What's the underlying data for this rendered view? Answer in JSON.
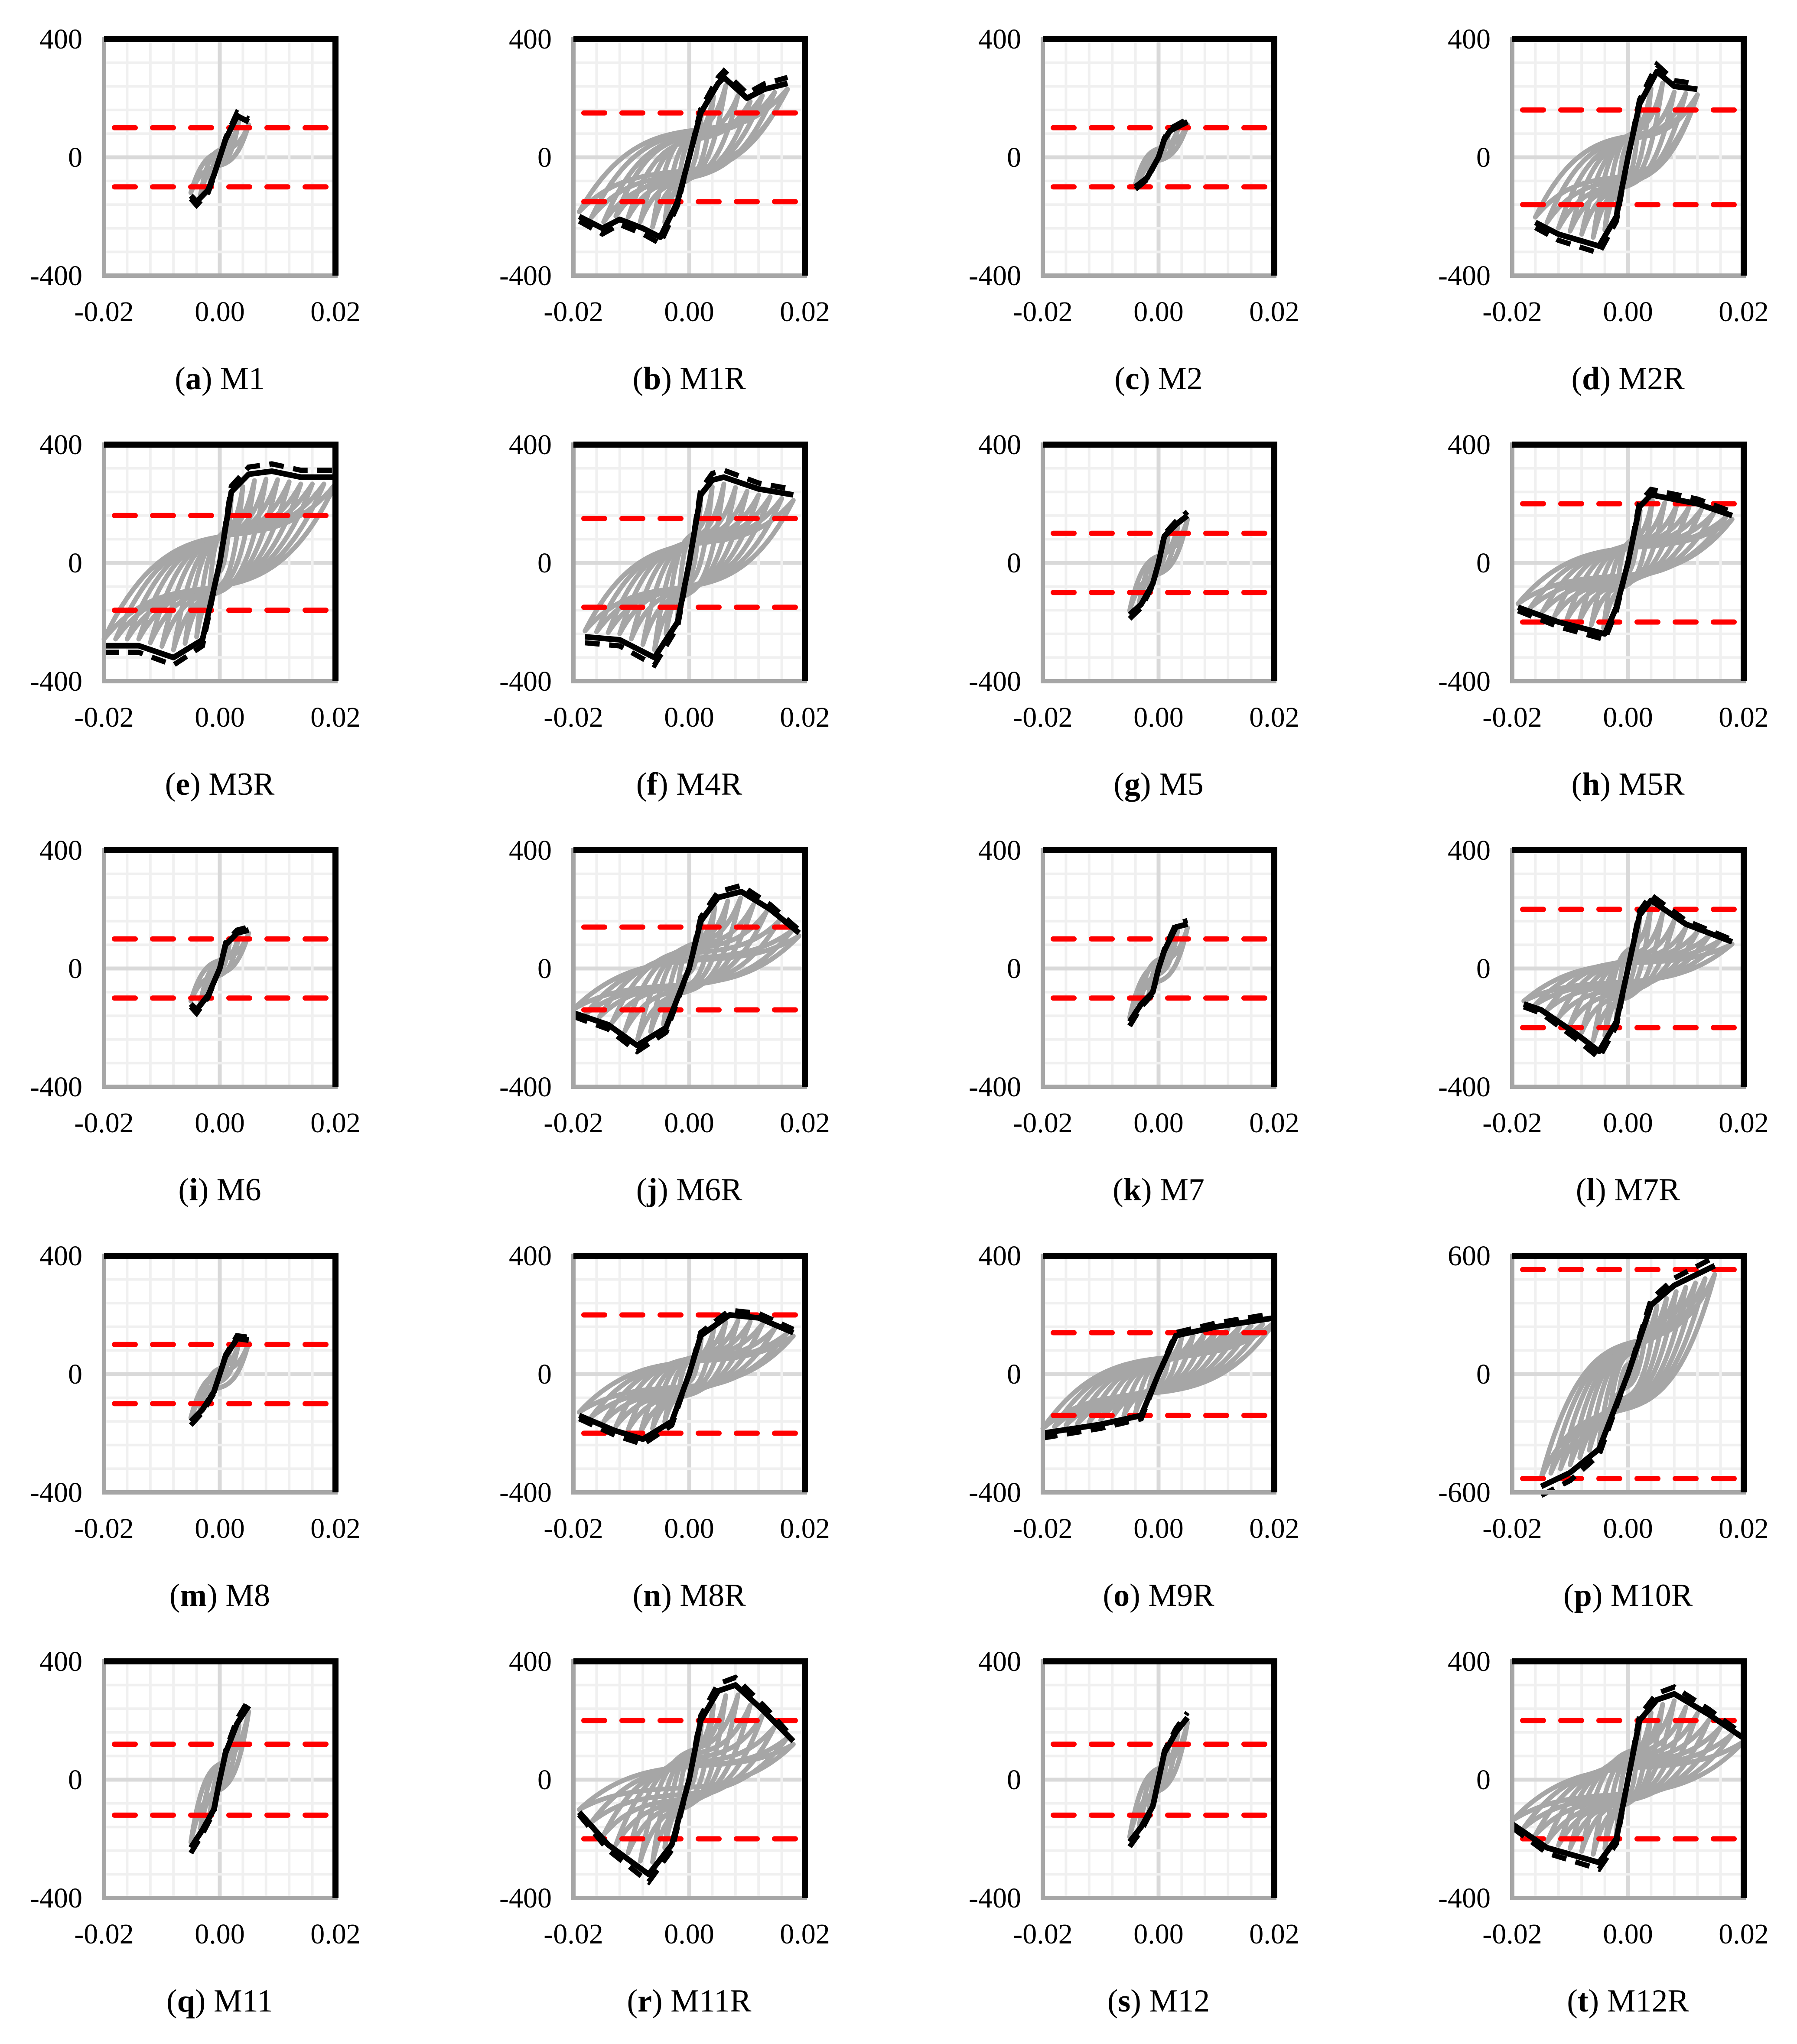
{
  "colors": {
    "loops": "#a6a6a6",
    "envelope": "#000000",
    "yield": "#ff0000",
    "grid": "#f0f0f0",
    "axis": "#d9d9d9"
  },
  "chart_data": [
    {
      "type": "line",
      "letter": "a",
      "name": "M1",
      "ylim": [
        -400,
        400
      ],
      "xlim": [
        -0.02,
        0.02
      ],
      "yticks": [
        "400",
        "0",
        "-400"
      ],
      "xticks": [
        "-0.02",
        "0.00",
        "0.02"
      ],
      "yield": 100,
      "cycles": 3,
      "envelope": [
        [
          -0.005,
          -130
        ],
        [
          -0.004,
          -150
        ],
        [
          -0.002,
          -110
        ],
        [
          -0.001,
          -60
        ],
        [
          0,
          0
        ],
        [
          0.001,
          60
        ],
        [
          0.002,
          100
        ],
        [
          0.003,
          140
        ],
        [
          0.005,
          120
        ]
      ]
    },
    {
      "type": "line",
      "letter": "b",
      "name": "M1R",
      "ylim": [
        -400,
        400
      ],
      "xlim": [
        -0.02,
        0.02
      ],
      "yticks": [
        "400",
        "0",
        "-400"
      ],
      "xticks": [
        "-0.02",
        "0.00",
        "0.02"
      ],
      "yield": 150,
      "cycles": 9,
      "envelope": [
        [
          -0.019,
          -200
        ],
        [
          -0.015,
          -240
        ],
        [
          -0.012,
          -210
        ],
        [
          -0.008,
          -240
        ],
        [
          -0.005,
          -270
        ],
        [
          -0.002,
          -150
        ],
        [
          0,
          0
        ],
        [
          0.002,
          150
        ],
        [
          0.005,
          250
        ],
        [
          0.006,
          270
        ],
        [
          0.01,
          200
        ],
        [
          0.013,
          230
        ],
        [
          0.017,
          250
        ]
      ]
    },
    {
      "type": "line",
      "letter": "c",
      "name": "M2",
      "ylim": [
        -400,
        400
      ],
      "xlim": [
        -0.02,
        0.02
      ],
      "yticks": [
        "400",
        "0",
        "-400"
      ],
      "xticks": [
        "-0.02",
        "0.00",
        "0.02"
      ],
      "yield": 100,
      "cycles": 3,
      "envelope": [
        [
          -0.004,
          -100
        ],
        [
          -0.002,
          -70
        ],
        [
          0,
          0
        ],
        [
          0.001,
          60
        ],
        [
          0.002,
          90
        ],
        [
          0.005,
          120
        ]
      ]
    },
    {
      "type": "line",
      "letter": "d",
      "name": "M2R",
      "ylim": [
        -400,
        400
      ],
      "xlim": [
        -0.02,
        0.02
      ],
      "yticks": [
        "400",
        "0",
        "-400"
      ],
      "xticks": [
        "-0.02",
        "0.00",
        "0.02"
      ],
      "yield": 160,
      "cycles": 8,
      "envelope": [
        [
          -0.016,
          -220
        ],
        [
          -0.012,
          -260
        ],
        [
          -0.005,
          -300
        ],
        [
          -0.002,
          -200
        ],
        [
          0,
          0
        ],
        [
          0.002,
          180
        ],
        [
          0.005,
          290
        ],
        [
          0.008,
          240
        ],
        [
          0.012,
          230
        ]
      ]
    },
    {
      "type": "line",
      "letter": "e",
      "name": "M3R",
      "ylim": [
        -400,
        400
      ],
      "xlim": [
        -0.02,
        0.02
      ],
      "yticks": [
        "400",
        "0",
        "-400"
      ],
      "xticks": [
        "-0.02",
        "0.00",
        "0.02"
      ],
      "yield": 160,
      "cycles": 10,
      "envelope": [
        [
          -0.02,
          -280
        ],
        [
          -0.014,
          -280
        ],
        [
          -0.008,
          -320
        ],
        [
          -0.003,
          -260
        ],
        [
          0,
          0
        ],
        [
          0.002,
          240
        ],
        [
          0.005,
          300
        ],
        [
          0.009,
          310
        ],
        [
          0.014,
          290
        ],
        [
          0.02,
          290
        ]
      ]
    },
    {
      "type": "line",
      "letter": "f",
      "name": "M4R",
      "ylim": [
        -400,
        400
      ],
      "xlim": [
        -0.02,
        0.02
      ],
      "yticks": [
        "400",
        "0",
        "-400"
      ],
      "xticks": [
        "-0.02",
        "0.00",
        "0.02"
      ],
      "yield": 150,
      "cycles": 9,
      "envelope": [
        [
          -0.018,
          -250
        ],
        [
          -0.012,
          -260
        ],
        [
          -0.006,
          -320
        ],
        [
          -0.002,
          -200
        ],
        [
          0,
          0
        ],
        [
          0.002,
          230
        ],
        [
          0.004,
          280
        ],
        [
          0.006,
          290
        ],
        [
          0.012,
          250
        ],
        [
          0.018,
          230
        ]
      ]
    },
    {
      "type": "line",
      "letter": "g",
      "name": "M5",
      "ylim": [
        -400,
        400
      ],
      "xlim": [
        -0.02,
        0.02
      ],
      "yticks": [
        "400",
        "0",
        "-400"
      ],
      "xticks": [
        "-0.02",
        "0.00",
        "0.02"
      ],
      "yield": 100,
      "cycles": 3,
      "envelope": [
        [
          -0.005,
          -175
        ],
        [
          -0.003,
          -140
        ],
        [
          -0.001,
          -70
        ],
        [
          0,
          0
        ],
        [
          0.001,
          90
        ],
        [
          0.003,
          130
        ],
        [
          0.005,
          160
        ]
      ]
    },
    {
      "type": "line",
      "letter": "h",
      "name": "M5R",
      "ylim": [
        -400,
        400
      ],
      "xlim": [
        -0.02,
        0.02
      ],
      "yticks": [
        "400",
        "0",
        "-400"
      ],
      "xticks": [
        "-0.02",
        "0.00",
        "0.02"
      ],
      "yield": 200,
      "cycles": 9,
      "envelope": [
        [
          -0.019,
          -150
        ],
        [
          -0.012,
          -200
        ],
        [
          -0.004,
          -240
        ],
        [
          -0.002,
          -150
        ],
        [
          0,
          0
        ],
        [
          0.002,
          190
        ],
        [
          0.004,
          230
        ],
        [
          0.012,
          200
        ],
        [
          0.018,
          160
        ]
      ]
    },
    {
      "type": "line",
      "letter": "i",
      "name": "M6",
      "ylim": [
        -400,
        400
      ],
      "xlim": [
        -0.02,
        0.02
      ],
      "yticks": [
        "400",
        "0",
        "-400"
      ],
      "xticks": [
        "-0.02",
        "0.00",
        "0.02"
      ],
      "yield": 100,
      "cycles": 3,
      "envelope": [
        [
          -0.005,
          -120
        ],
        [
          -0.004,
          -140
        ],
        [
          -0.002,
          -90
        ],
        [
          0,
          0
        ],
        [
          0.001,
          80
        ],
        [
          0.003,
          120
        ],
        [
          0.005,
          130
        ]
      ]
    },
    {
      "type": "line",
      "letter": "j",
      "name": "M6R",
      "ylim": [
        -400,
        400
      ],
      "xlim": [
        -0.02,
        0.02
      ],
      "yticks": [
        "400",
        "0",
        "-400"
      ],
      "xticks": [
        "-0.02",
        "0.00",
        "0.02"
      ],
      "yield": 140,
      "cycles": 9,
      "envelope": [
        [
          -0.02,
          -150
        ],
        [
          -0.014,
          -190
        ],
        [
          -0.009,
          -260
        ],
        [
          -0.004,
          -200
        ],
        [
          0,
          0
        ],
        [
          0.002,
          160
        ],
        [
          0.005,
          240
        ],
        [
          0.009,
          260
        ],
        [
          0.014,
          200
        ],
        [
          0.019,
          120
        ]
      ]
    },
    {
      "type": "line",
      "letter": "k",
      "name": "M7",
      "ylim": [
        -400,
        400
      ],
      "xlim": [
        -0.02,
        0.02
      ],
      "yticks": [
        "400",
        "0",
        "-400"
      ],
      "xticks": [
        "-0.02",
        "0.00",
        "0.02"
      ],
      "yield": 100,
      "cycles": 3,
      "envelope": [
        [
          -0.005,
          -180
        ],
        [
          -0.003,
          -120
        ],
        [
          -0.001,
          -80
        ],
        [
          0,
          0
        ],
        [
          0.001,
          60
        ],
        [
          0.003,
          140
        ],
        [
          0.005,
          150
        ]
      ]
    },
    {
      "type": "line",
      "letter": "l",
      "name": "M7R",
      "ylim": [
        -400,
        400
      ],
      "xlim": [
        -0.02,
        0.02
      ],
      "yticks": [
        "400",
        "0",
        "-400"
      ],
      "xticks": [
        "-0.02",
        "0.00",
        "0.02"
      ],
      "yield": 200,
      "cycles": 9,
      "envelope": [
        [
          -0.018,
          -120
        ],
        [
          -0.015,
          -140
        ],
        [
          -0.009,
          -220
        ],
        [
          -0.005,
          -280
        ],
        [
          -0.002,
          -180
        ],
        [
          0,
          0
        ],
        [
          0.002,
          180
        ],
        [
          0.004,
          230
        ],
        [
          0.01,
          150
        ],
        [
          0.018,
          90
        ]
      ]
    },
    {
      "type": "line",
      "letter": "m",
      "name": "M8",
      "ylim": [
        -400,
        400
      ],
      "xlim": [
        -0.02,
        0.02
      ],
      "yticks": [
        "400",
        "0",
        "-400"
      ],
      "xticks": [
        "-0.02",
        "0.00",
        "0.02"
      ],
      "yield": 100,
      "cycles": 3,
      "envelope": [
        [
          -0.005,
          -160
        ],
        [
          -0.003,
          -120
        ],
        [
          -0.001,
          -60
        ],
        [
          0,
          0
        ],
        [
          0.001,
          60
        ],
        [
          0.003,
          120
        ],
        [
          0.005,
          115
        ]
      ]
    },
    {
      "type": "line",
      "letter": "n",
      "name": "M8R",
      "ylim": [
        -400,
        400
      ],
      "xlim": [
        -0.02,
        0.02
      ],
      "yticks": [
        "400",
        "0",
        "-400"
      ],
      "xticks": [
        "-0.02",
        "0.00",
        "0.02"
      ],
      "yield": 200,
      "cycles": 9,
      "envelope": [
        [
          -0.019,
          -140
        ],
        [
          -0.013,
          -190
        ],
        [
          -0.008,
          -220
        ],
        [
          -0.003,
          -160
        ],
        [
          0,
          0
        ],
        [
          0.002,
          130
        ],
        [
          0.007,
          200
        ],
        [
          0.012,
          190
        ],
        [
          0.018,
          140
        ]
      ]
    },
    {
      "type": "line",
      "letter": "o",
      "name": "M9R",
      "ylim": [
        -400,
        400
      ],
      "xlim": [
        -0.02,
        0.02
      ],
      "yticks": [
        "400",
        "0",
        "-400"
      ],
      "xticks": [
        "-0.02",
        "0.00",
        "0.02"
      ],
      "yield": 140,
      "cycles": 10,
      "envelope": [
        [
          -0.02,
          -200
        ],
        [
          -0.01,
          -170
        ],
        [
          -0.003,
          -140
        ],
        [
          0,
          0
        ],
        [
          0.003,
          130
        ],
        [
          0.01,
          160
        ],
        [
          0.02,
          190
        ]
      ]
    },
    {
      "type": "line",
      "letter": "p",
      "name": "M10R",
      "ylim": [
        -600,
        600
      ],
      "xlim": [
        -0.02,
        0.02
      ],
      "yticks": [
        "600",
        "0",
        "-600"
      ],
      "xticks": [
        "-0.02",
        "0.00",
        "0.02"
      ],
      "yield": 530,
      "cycles": 9,
      "envelope": [
        [
          -0.015,
          -570
        ],
        [
          -0.01,
          -500
        ],
        [
          -0.005,
          -380
        ],
        [
          0,
          0
        ],
        [
          0.004,
          350
        ],
        [
          0.008,
          450
        ],
        [
          0.015,
          550
        ]
      ]
    },
    {
      "type": "line",
      "letter": "q",
      "name": "M11",
      "ylim": [
        -400,
        400
      ],
      "xlim": [
        -0.02,
        0.02
      ],
      "yticks": [
        "400",
        "0",
        "-400"
      ],
      "xticks": [
        "-0.02",
        "0.00",
        "0.02"
      ],
      "yield": 120,
      "cycles": 3,
      "envelope": [
        [
          -0.005,
          -230
        ],
        [
          -0.003,
          -170
        ],
        [
          -0.001,
          -100
        ],
        [
          0,
          0
        ],
        [
          0.001,
          90
        ],
        [
          0.003,
          190
        ],
        [
          0.005,
          250
        ]
      ]
    },
    {
      "type": "line",
      "letter": "r",
      "name": "M11R",
      "ylim": [
        -400,
        400
      ],
      "xlim": [
        -0.02,
        0.02
      ],
      "yticks": [
        "400",
        "0",
        "-400"
      ],
      "xticks": [
        "-0.02",
        "0.00",
        "0.02"
      ],
      "yield": 200,
      "cycles": 9,
      "envelope": [
        [
          -0.019,
          -110
        ],
        [
          -0.014,
          -220
        ],
        [
          -0.007,
          -320
        ],
        [
          -0.003,
          -220
        ],
        [
          0,
          0
        ],
        [
          0.002,
          200
        ],
        [
          0.005,
          300
        ],
        [
          0.008,
          320
        ],
        [
          0.013,
          230
        ],
        [
          0.018,
          130
        ]
      ]
    },
    {
      "type": "line",
      "letter": "s",
      "name": "M12",
      "ylim": [
        -400,
        400
      ],
      "xlim": [
        -0.02,
        0.02
      ],
      "yticks": [
        "400",
        "0",
        "-400"
      ],
      "xticks": [
        "-0.02",
        "0.00",
        "0.02"
      ],
      "yield": 120,
      "cycles": 3,
      "envelope": [
        [
          -0.005,
          -210
        ],
        [
          -0.003,
          -160
        ],
        [
          -0.001,
          -90
        ],
        [
          0,
          0
        ],
        [
          0.001,
          90
        ],
        [
          0.003,
          160
        ],
        [
          0.005,
          210
        ]
      ]
    },
    {
      "type": "line",
      "letter": "t",
      "name": "M12R",
      "ylim": [
        -400,
        400
      ],
      "xlim": [
        -0.02,
        0.02
      ],
      "yticks": [
        "400",
        "0",
        "-400"
      ],
      "xticks": [
        "-0.02",
        "0.00",
        "0.02"
      ],
      "yield": 200,
      "cycles": 10,
      "envelope": [
        [
          -0.02,
          -150
        ],
        [
          -0.014,
          -230
        ],
        [
          -0.005,
          -280
        ],
        [
          -0.002,
          -200
        ],
        [
          0,
          0
        ],
        [
          0.002,
          200
        ],
        [
          0.005,
          270
        ],
        [
          0.008,
          290
        ],
        [
          0.014,
          220
        ],
        [
          0.02,
          140
        ]
      ]
    }
  ]
}
